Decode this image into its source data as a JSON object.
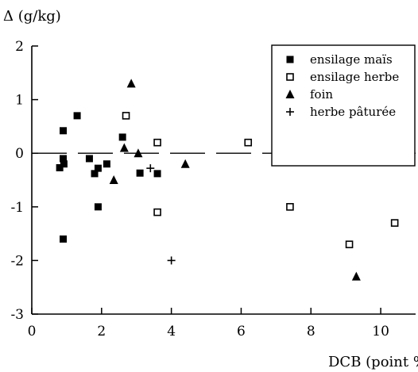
{
  "chart_data": {
    "type": "scatter",
    "title": "",
    "ylabel": "Δ (g/kg)",
    "xlabel": "DCB (point %)",
    "xlim": [
      0,
      11
    ],
    "ylim": [
      -3,
      2
    ],
    "x_ticks": [
      "0",
      "2",
      "4",
      "6",
      "8",
      "10"
    ],
    "x_tick_values": [
      0,
      2,
      4,
      6,
      8,
      10
    ],
    "y_ticks": [
      "2",
      "1",
      "0",
      "-1",
      "-2",
      "-3"
    ],
    "y_tick_values": [
      2,
      1,
      0,
      -1,
      -2,
      -3
    ],
    "grid": false,
    "legend_position": "top-right",
    "reference_line": {
      "y": 0,
      "style": "dashed"
    },
    "series": [
      {
        "name": "ensilage maïs",
        "marker": "filled-square",
        "color": "#000000",
        "points": [
          [
            0.8,
            -0.27
          ],
          [
            0.9,
            0.42
          ],
          [
            0.9,
            -0.1
          ],
          [
            0.92,
            -0.2
          ],
          [
            0.9,
            -1.6
          ],
          [
            1.3,
            0.7
          ],
          [
            1.65,
            -0.1
          ],
          [
            1.8,
            -0.38
          ],
          [
            1.9,
            -0.28
          ],
          [
            1.9,
            -1.0
          ],
          [
            2.15,
            -0.2
          ],
          [
            2.6,
            0.3
          ],
          [
            3.1,
            -0.37
          ],
          [
            3.6,
            -0.38
          ]
        ]
      },
      {
        "name": "ensilage herbe",
        "marker": "open-square",
        "color": "#000000",
        "points": [
          [
            2.7,
            0.7
          ],
          [
            3.6,
            0.2
          ],
          [
            3.6,
            -1.1
          ],
          [
            6.2,
            0.2
          ],
          [
            7.4,
            -1.0
          ],
          [
            9.1,
            -1.7
          ],
          [
            10.4,
            -1.3
          ]
        ]
      },
      {
        "name": "foin",
        "marker": "triangle",
        "color": "#000000",
        "points": [
          [
            2.35,
            -0.5
          ],
          [
            2.65,
            0.1
          ],
          [
            2.85,
            1.3
          ],
          [
            3.05,
            0.0
          ],
          [
            4.4,
            -0.2
          ],
          [
            9.3,
            -2.3
          ]
        ]
      },
      {
        "name": "herbe pâturée",
        "marker": "plus",
        "color": "#000000",
        "points": [
          [
            3.4,
            -0.28
          ],
          [
            4.0,
            -2.0
          ]
        ]
      }
    ]
  }
}
